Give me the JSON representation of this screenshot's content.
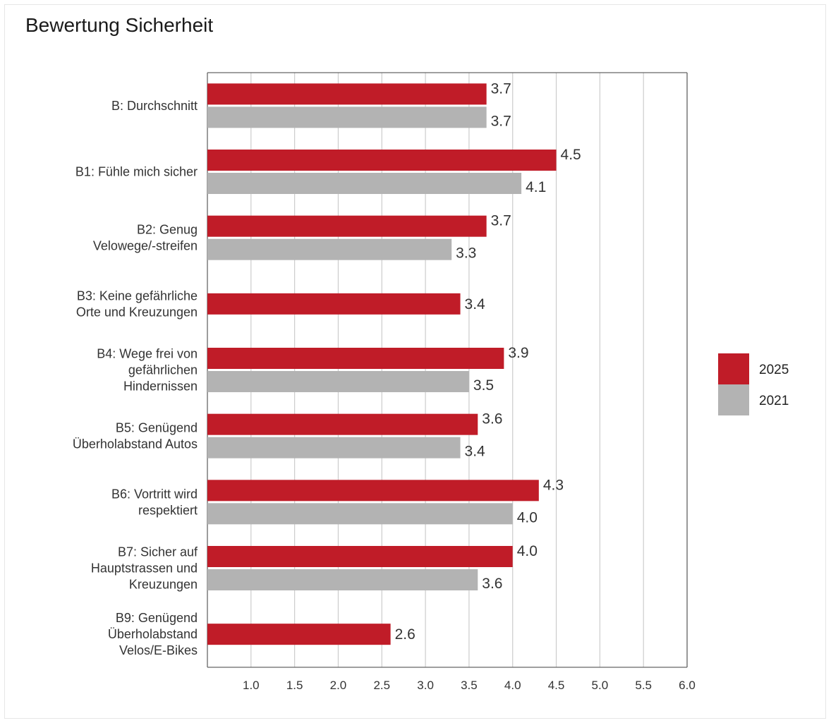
{
  "title": "Bewertung Sicherheit",
  "colors": {
    "s2025": "#c01c28",
    "s2021": "#b3b3b3",
    "grid": "#cccccc",
    "axis": "#666666"
  },
  "chart_data": {
    "type": "bar",
    "orientation": "horizontal",
    "title": "Bewertung Sicherheit",
    "xlabel": "",
    "ylabel": "",
    "xlim": [
      0.5,
      6.0
    ],
    "xticks": [
      "1.0",
      "1.5",
      "2.0",
      "2.5",
      "3.0",
      "3.5",
      "4.0",
      "4.5",
      "5.0",
      "5.5",
      "6.0"
    ],
    "grid": true,
    "legend_position": "right",
    "categories": [
      [
        "B: Durchschnitt"
      ],
      [
        "B1: Fühle mich sicher"
      ],
      [
        "B2: Genug",
        "Velowege/-streifen"
      ],
      [
        "B3: Keine gefährliche",
        "Orte und Kreuzungen"
      ],
      [
        "B4: Wege frei von",
        "gefährlichen",
        "Hindernissen"
      ],
      [
        "B5: Genügend",
        "Überholabstand Autos"
      ],
      [
        "B6: Vortritt wird",
        "respektiert"
      ],
      [
        "B7: Sicher auf",
        "Hauptstrassen und",
        "Kreuzungen"
      ],
      [
        "B9: Genügend",
        "Überholabstand",
        "Velos/E-Bikes"
      ]
    ],
    "series": [
      {
        "name": "2025",
        "values": [
          3.7,
          4.5,
          3.7,
          3.4,
          3.9,
          3.6,
          4.3,
          4.0,
          2.6
        ],
        "labels": [
          "3.7",
          "4.5",
          "3.7",
          "3.4",
          "3.9",
          "3.6",
          "4.3",
          "4.0",
          "2.6"
        ]
      },
      {
        "name": "2021",
        "values": [
          3.7,
          4.1,
          3.3,
          null,
          3.5,
          3.4,
          4.0,
          3.6,
          null
        ],
        "labels": [
          "3.7",
          "4.1",
          "3.3",
          null,
          "3.5",
          "3.4",
          "4.0",
          "3.6",
          null
        ]
      }
    ]
  }
}
